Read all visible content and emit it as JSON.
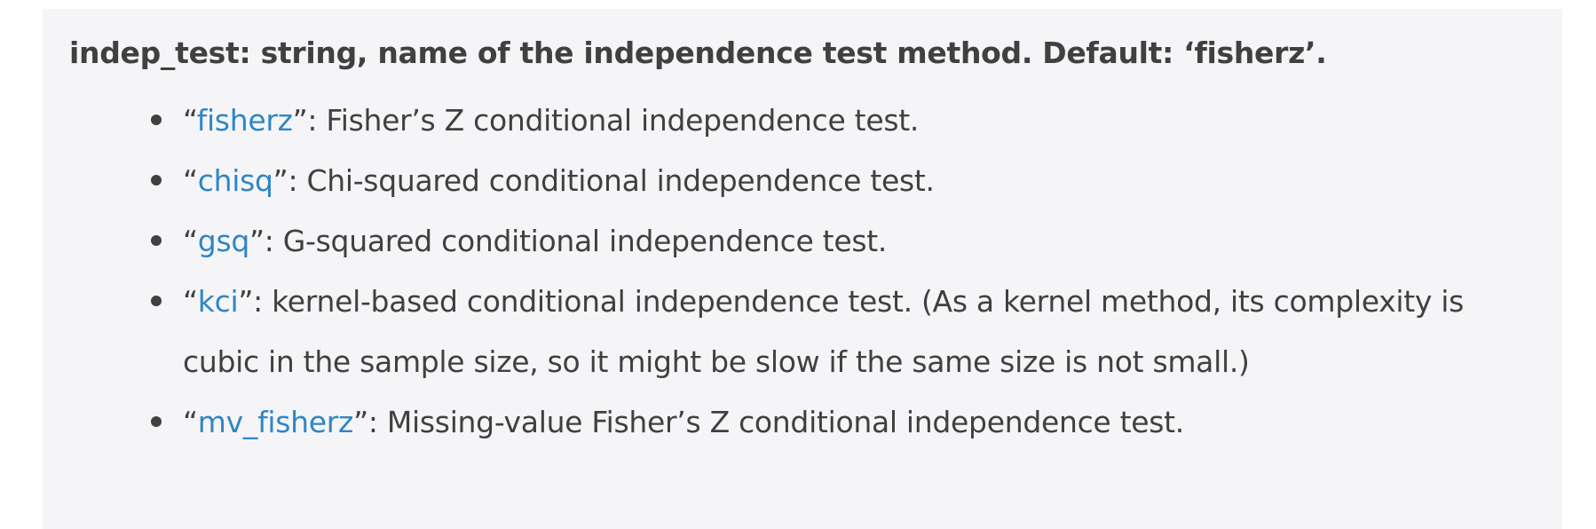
{
  "heading": "indep_test: string, name of the independence test method. Default: ‘fisherz’.",
  "options": [
    {
      "name": "fisherz",
      "desc": ": Fisher’s Z conditional independence test."
    },
    {
      "name": "chisq",
      "desc": ": Chi-squared conditional independence test."
    },
    {
      "name": "gsq",
      "desc": ": G-squared conditional independence test."
    },
    {
      "name": "kci",
      "desc": ": kernel-based conditional independence test. (As a kernel method, its complexity is cubic in the sample size, so it might be slow if the same size is not small.)"
    },
    {
      "name": "mv_fisherz",
      "desc": ": Missing-value Fisher’s Z conditional independence test."
    }
  ],
  "quotes": {
    "open": "“",
    "close": "”"
  },
  "colors": {
    "link": "#2f86c6",
    "text": "#404040",
    "background": "#f5f5f7"
  }
}
